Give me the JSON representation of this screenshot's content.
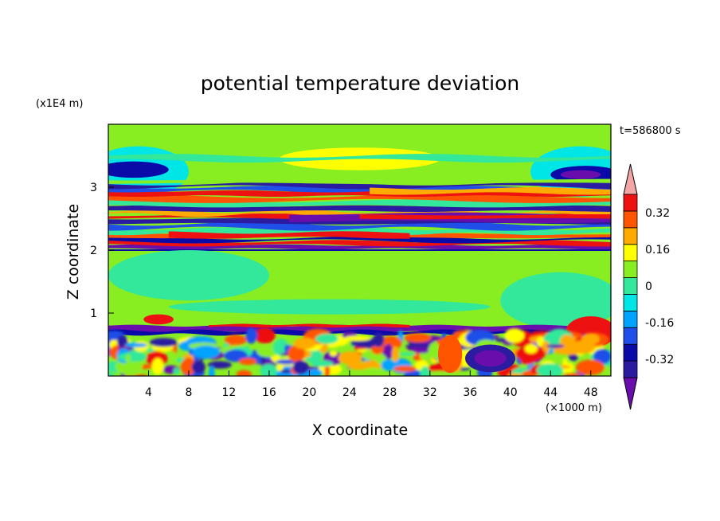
{
  "chart_data": {
    "type": "heatmap",
    "title": "potential temperature deviation",
    "xlabel": "X coordinate",
    "ylabel": "Z coordinate",
    "x_unit": "(×1000 m)",
    "y_unit": "(x1E4 m)",
    "time_label": "t=586800 s",
    "x_ticks": [
      4,
      8,
      12,
      16,
      20,
      24,
      28,
      32,
      36,
      40,
      44,
      48
    ],
    "y_ticks": [
      1,
      2,
      3
    ],
    "xlim": [
      0,
      50
    ],
    "ylim": [
      0,
      4
    ],
    "colorbar": {
      "levels": [
        -0.48,
        -0.4,
        -0.32,
        -0.24,
        -0.16,
        -0.08,
        0,
        0.08,
        0.16,
        0.24,
        0.32,
        0.4,
        0.48
      ],
      "colors": [
        "#6a0dad",
        "#2b1ba0",
        "#0a0aa8",
        "#1f4fe8",
        "#00a3ff",
        "#00e6e6",
        "#33e89a",
        "#88ee22",
        "#ffff00",
        "#ffaa00",
        "#ff5500",
        "#ee1111",
        "#f4a6a6"
      ],
      "tick_labels": [
        "-0.32",
        "-0.16",
        "0",
        "0.16",
        "0.32"
      ],
      "tick_values": [
        -0.32,
        -0.16,
        0,
        0.16,
        0.32
      ]
    },
    "background_color": "#88ee22"
  }
}
